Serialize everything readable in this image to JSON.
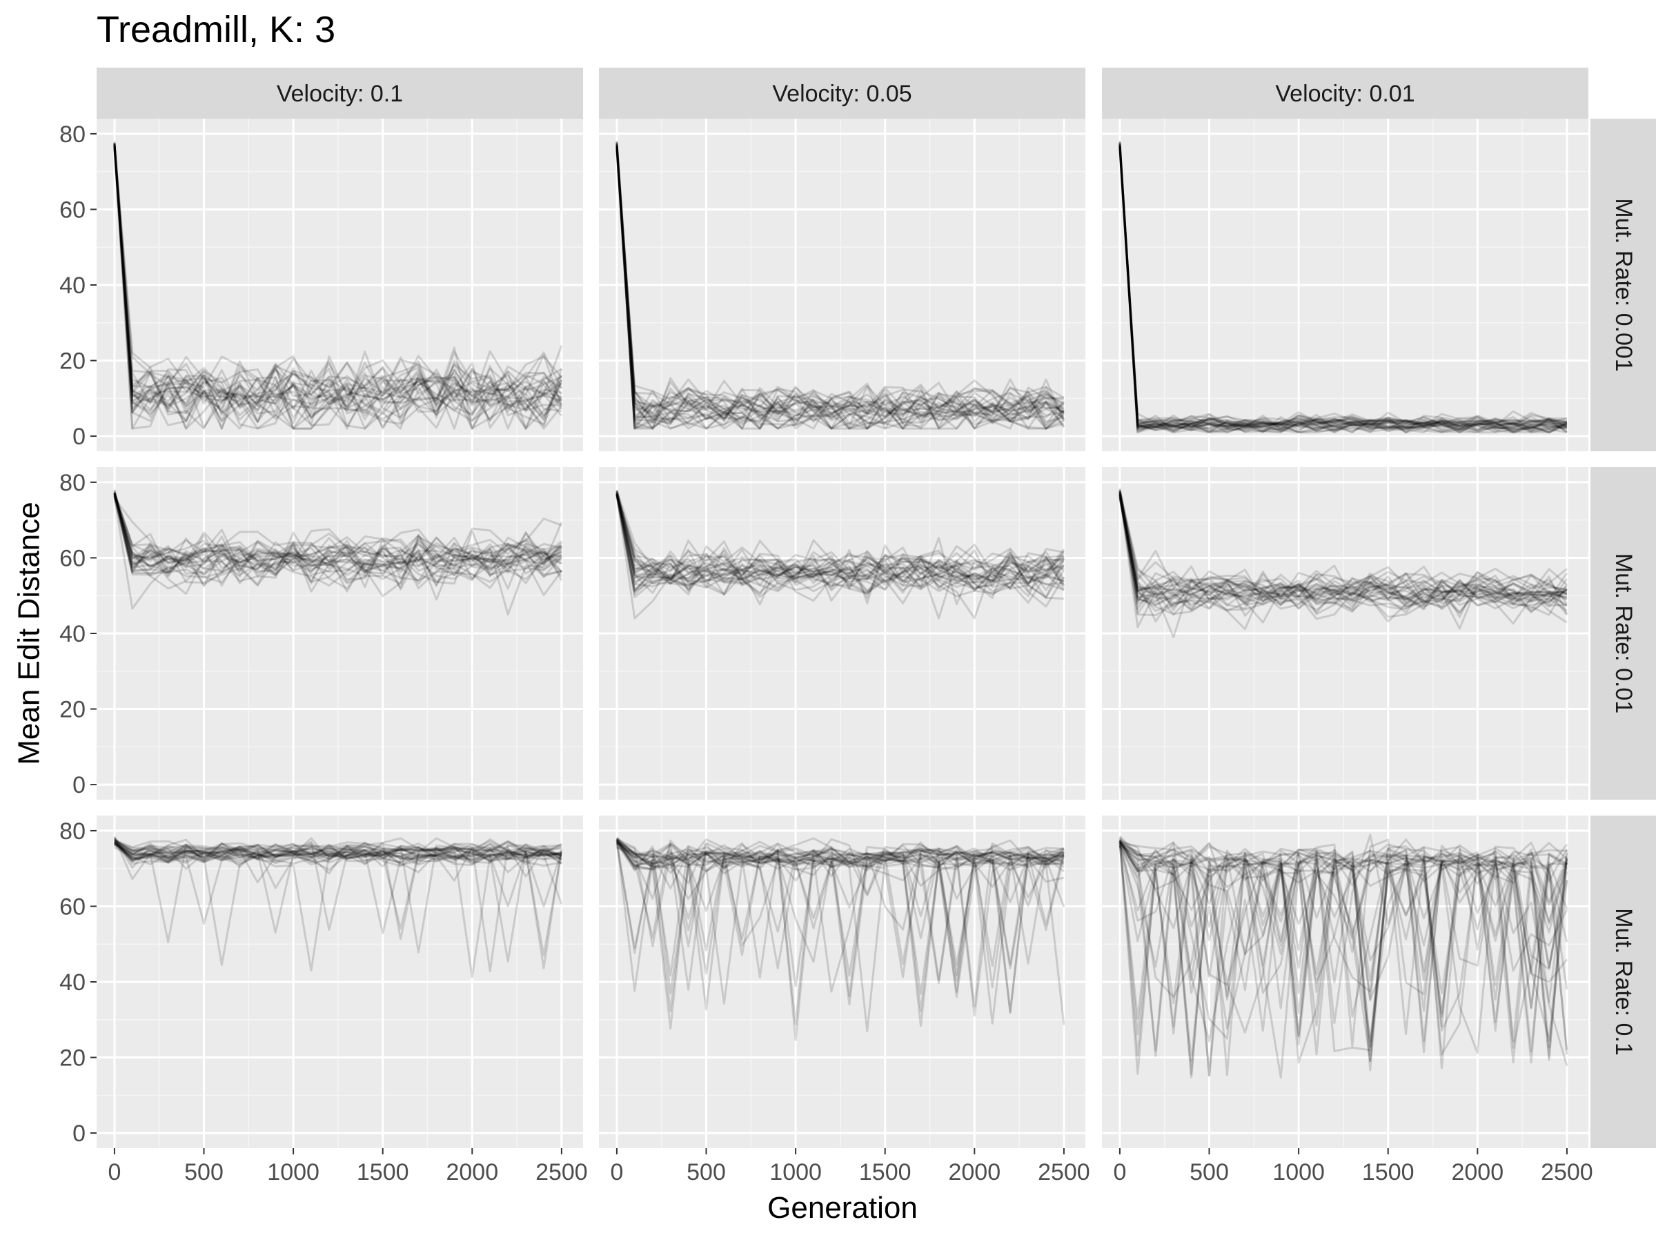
{
  "chart_data": {
    "type": "line",
    "title": "Treadmill, K: 3",
    "xlabel": "Generation",
    "ylabel": "Mean Edit Distance",
    "x_ticks": [
      0,
      500,
      1000,
      1500,
      2000,
      2500
    ],
    "y_ticks": [
      0,
      20,
      40,
      60,
      80
    ],
    "xlim": [
      -100,
      2620
    ],
    "ylim": [
      -4,
      84
    ],
    "grid": true,
    "columns": [
      "Velocity: 0.1",
      "Velocity: 0.05",
      "Velocity: 0.01"
    ],
    "rows": [
      "Mut. Rate: 0.001",
      "Mut. Rate: 0.01",
      "Mut. Rate: 0.1"
    ],
    "sample_interval": 100,
    "x_range": [
      0,
      2500
    ],
    "initial_value": 77,
    "series_per_panel": 30,
    "line_color": "#000000",
    "line_opacity": 0.14,
    "panels": [
      {
        "row": "Mut. Rate: 0.001",
        "col": "Velocity: 0.1",
        "mean": 11,
        "sd": 5,
        "dip_prob": 0.04,
        "dip_depth": 12,
        "clip": [
          2,
          40
        ]
      },
      {
        "row": "Mut. Rate: 0.001",
        "col": "Velocity: 0.05",
        "mean": 7,
        "sd": 3.5,
        "dip_prob": 0.03,
        "dip_depth": 10,
        "clip": [
          2,
          37
        ]
      },
      {
        "row": "Mut. Rate: 0.001",
        "col": "Velocity: 0.01",
        "mean": 3,
        "sd": 1.3,
        "dip_prob": 0.02,
        "dip_depth": 5,
        "clip": [
          1,
          14
        ]
      },
      {
        "row": "Mut. Rate: 0.01",
        "col": "Velocity: 0.1",
        "mean": 60,
        "sd": 3.6,
        "dip_prob": 0.02,
        "dip_depth": 8,
        "clip": [
          45,
          71
        ]
      },
      {
        "row": "Mut. Rate: 0.01",
        "col": "Velocity: 0.05",
        "mean": 56,
        "sd": 3.6,
        "dip_prob": 0.02,
        "dip_depth": 8,
        "clip": [
          44,
          67
        ]
      },
      {
        "row": "Mut. Rate: 0.01",
        "col": "Velocity: 0.01",
        "mean": 51,
        "sd": 3.0,
        "dip_prob": 0.02,
        "dip_depth": 6,
        "clip": [
          39,
          62
        ]
      },
      {
        "row": "Mut. Rate: 0.1",
        "col": "Velocity: 0.1",
        "mean": 74,
        "sd": 1.6,
        "dip_prob": 0.05,
        "dip_depth": 25,
        "clip": [
          29,
          78
        ]
      },
      {
        "row": "Mut. Rate: 0.1",
        "col": "Velocity: 0.05",
        "mean": 73,
        "sd": 2.0,
        "dip_prob": 0.14,
        "dip_depth": 35,
        "clip": [
          17,
          78
        ]
      },
      {
        "row": "Mut. Rate: 0.1",
        "col": "Velocity: 0.01",
        "mean": 72,
        "sd": 2.5,
        "dip_prob": 0.3,
        "dip_depth": 42,
        "clip": [
          11,
          79
        ]
      }
    ]
  },
  "colors": {
    "panel_background": "#ebebeb",
    "strip_background": "#d9d9d9",
    "grid_major": "#ffffff",
    "grid_minor": "#f5f5f5",
    "tick_color": "#333333",
    "tick_label": "#4d4d4d"
  }
}
